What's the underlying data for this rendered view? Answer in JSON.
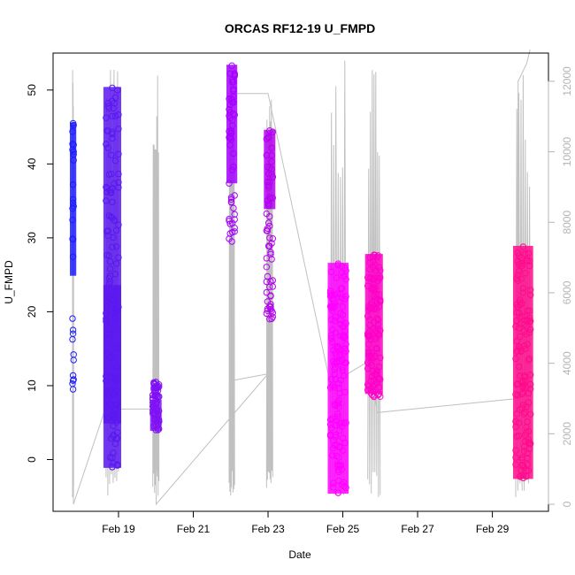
{
  "chart_data": {
    "type": "scatter",
    "title": "ORCAS RF12-19 U_FMPD",
    "xlabel": "Date",
    "ylabel": "U_FMPD",
    "xlim": [
      "2016-02-17 06:00",
      "2016-03-01 12:00"
    ],
    "ylim": [
      -7.0,
      55.0
    ],
    "y2lim": [
      -200,
      12800
    ],
    "x_ticks": [
      "Feb 19",
      "Feb 21",
      "Feb 23",
      "Feb 25",
      "Feb 27",
      "Feb 29"
    ],
    "y_ticks": [
      "0",
      "10",
      "20",
      "30",
      "40",
      "50"
    ],
    "y2_ticks": [
      "0",
      "2000",
      "4000",
      "6000",
      "8000",
      "10000",
      "12000"
    ],
    "grid": false,
    "colors": {
      "rf12": "#1c1cff",
      "rf13": "#5a18f0",
      "rf14": "#8010f5",
      "rf15": "#a500ff",
      "rf16": "#b400f0",
      "rf17": "#ff00ff",
      "rf18": "#ff00c8",
      "rf19": "#ff0a8c",
      "altitude": "#c0c0c0"
    },
    "series": [
      {
        "key": "rf12",
        "x_range": [
          "2016-02-17 18:30",
          "2016-02-17 19:10"
        ],
        "segments": [
          [
            9.5,
            45.5
          ]
        ],
        "dense": [
          [
            25,
            45.5
          ]
        ]
      },
      {
        "key": "rf13",
        "x_range": [
          "2016-02-18 16:00",
          "2016-02-18 23:59"
        ],
        "segments": [
          [
            -1.0,
            48.5
          ],
          [
            -1.0,
            50.3
          ]
        ],
        "dense": [
          [
            5,
            50.3
          ],
          [
            -1.0,
            23.5
          ]
        ]
      },
      {
        "key": "rf14",
        "x_range": [
          "2016-02-19 22:00",
          "2016-02-20 02:00"
        ],
        "segments": [
          [
            4.0,
            10.5
          ]
        ],
        "dense": [
          [
            4.0,
            8.0
          ]
        ]
      },
      {
        "key": "rf15",
        "x_range": [
          "2016-02-21 23:00",
          "2016-02-22 02:30"
        ],
        "segments": [
          [
            29.5,
            53.3
          ]
        ],
        "dense": [
          [
            37.5,
            53.3
          ]
        ]
      },
      {
        "key": "rf16",
        "x_range": [
          "2016-02-22 23:00",
          "2016-02-23 03:00"
        ],
        "segments": [
          [
            19.0,
            44.5
          ]
        ],
        "dense": [
          [
            34.0,
            44.5
          ]
        ]
      },
      {
        "key": "rf17",
        "x_range": [
          "2016-02-24 16:00",
          "2016-02-25 02:00"
        ],
        "segments": [
          [
            -4.5,
            26.5
          ],
          [
            -4.5,
            26.3
          ]
        ],
        "dense": [
          [
            -4.5,
            26.5
          ]
        ]
      },
      {
        "key": "rf18",
        "x_range": [
          "2016-02-25 16:00",
          "2016-02-26 00:00"
        ],
        "segments": [
          [
            8.5,
            27.7
          ]
        ],
        "dense": [
          [
            9.0,
            27.7
          ]
        ]
      },
      {
        "key": "rf19",
        "x_range": [
          "2016-02-29 15:00",
          "2016-03-01 00:30"
        ],
        "segments": [
          [
            -2.5,
            28.8
          ]
        ],
        "dense": [
          [
            -2.5,
            28.8
          ]
        ]
      }
    ],
    "altitude_series": [
      {
        "date": "2016-02-17 18:45",
        "alt": 11950
      },
      {
        "date": "2016-02-17 19:05",
        "alt": 0
      },
      {
        "date": "2016-02-18 23:00",
        "alt": 3700
      },
      {
        "date": "2016-02-18 23:59",
        "alt": 2700
      },
      {
        "date": "2016-02-19 23:55",
        "alt": 2700
      },
      {
        "date": "2016-02-20 00:10",
        "alt": 0
      },
      {
        "date": "2016-02-23 00:00",
        "alt": 3700
      },
      {
        "date": "2016-02-21 23:30",
        "alt": 3500
      },
      {
        "date": "2016-02-21 23:30",
        "alt": 11650
      },
      {
        "date": "2016-02-23 00:00",
        "alt": 11650
      },
      {
        "date": "2016-02-24 16:00",
        "alt": 3400
      },
      {
        "date": "2016-02-25 18:00",
        "alt": 4100
      },
      {
        "date": "2016-02-25 22:00",
        "alt": 2600
      },
      {
        "date": "2016-02-29 16:00",
        "alt": 3000
      },
      {
        "date": "2016-02-29 16:30",
        "alt": 12000
      },
      {
        "date": "2016-02-29 22:00",
        "alt": 12500
      },
      {
        "date": "2016-03-01 00:10",
        "alt": 12900
      }
    ]
  }
}
